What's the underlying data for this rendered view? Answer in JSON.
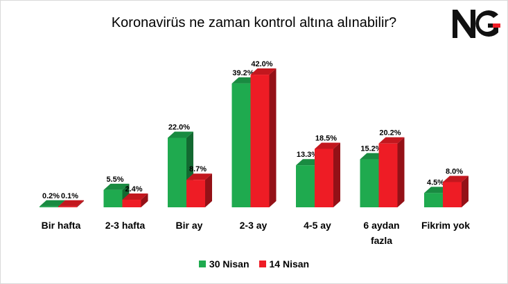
{
  "logo": {
    "text": "NG"
  },
  "chart_data": {
    "type": "bar",
    "title": "Koronavirüs ne zaman kontrol altına alınabilir?",
    "xlabel": "",
    "ylabel": "",
    "ylim": [
      0,
      45
    ],
    "grid": false,
    "legend_position": "bottom",
    "categories": [
      "Bir hafta",
      "2-3 hafta",
      "Bir ay",
      "2-3 ay",
      "4-5 ay",
      "6 aydan fazla",
      "Fikrim yok"
    ],
    "series": [
      {
        "name": "30 Nisan",
        "color": "#1faa4f",
        "values": [
          0.2,
          5.5,
          22.0,
          39.2,
          13.3,
          15.2,
          4.5
        ],
        "labels": [
          "0.2%",
          "5.5%",
          "22.0%",
          "39.2%",
          "13.3%",
          "15.2%",
          "4.5%"
        ]
      },
      {
        "name": "14 Nisan",
        "color": "#ee1c25",
        "values": [
          0.1,
          2.4,
          8.7,
          42.0,
          18.5,
          20.2,
          8.0
        ],
        "labels": [
          "0.1%",
          "2.4%",
          "8.7%",
          "42.0%",
          "18.5%",
          "20.2%",
          "8.0%"
        ]
      }
    ]
  }
}
